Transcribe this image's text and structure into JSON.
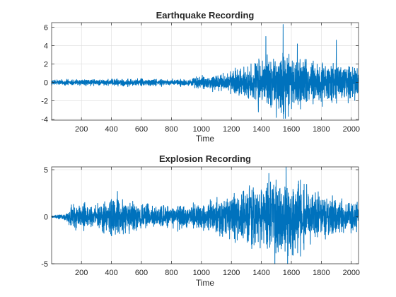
{
  "chart_data": [
    {
      "type": "line",
      "title": "Earthquake Recording",
      "xlabel": "Time",
      "ylabel": "",
      "xlim": [
        1,
        2048
      ],
      "ylim": [
        -4.1,
        6.5
      ],
      "xticks": [
        200,
        400,
        600,
        800,
        1000,
        1200,
        1400,
        1600,
        1800,
        2000
      ],
      "yticks": [
        -4,
        -2,
        0,
        2,
        4,
        6
      ],
      "grid": true,
      "color": "#0072BD",
      "signal": {
        "n": 2048,
        "envelope": [
          [
            1,
            0.25
          ],
          [
            900,
            0.3
          ],
          [
            1000,
            0.55
          ],
          [
            1200,
            1.0
          ],
          [
            1400,
            2.0
          ],
          [
            1550,
            2.8
          ],
          [
            1600,
            2.2
          ],
          [
            1800,
            1.8
          ],
          [
            2048,
            1.4
          ]
        ],
        "peaks": [
          [
            1545,
            6.3
          ],
          [
            1560,
            -3.9
          ],
          [
            1430,
            5.0
          ],
          [
            1500,
            -3.8
          ],
          [
            1640,
            4.2
          ],
          [
            1900,
            4.6
          ],
          [
            1380,
            -3.2
          ]
        ]
      }
    },
    {
      "type": "line",
      "title": "Explosion Recording",
      "xlabel": "Time",
      "ylabel": "",
      "xlim": [
        1,
        2048
      ],
      "ylim": [
        -5,
        5.3
      ],
      "xticks": [
        200,
        400,
        600,
        800,
        1000,
        1200,
        1400,
        1600,
        1800,
        2000
      ],
      "yticks": [
        -5,
        0,
        5
      ],
      "grid": true,
      "color": "#0072BD",
      "signal": {
        "n": 2048,
        "envelope": [
          [
            1,
            0.1
          ],
          [
            100,
            0.3
          ],
          [
            120,
            1.0
          ],
          [
            300,
            1.0
          ],
          [
            430,
            1.8
          ],
          [
            550,
            1.2
          ],
          [
            700,
            0.9
          ],
          [
            1000,
            1.0
          ],
          [
            1200,
            1.8
          ],
          [
            1350,
            2.5
          ],
          [
            1500,
            3.2
          ],
          [
            1600,
            3.0
          ],
          [
            1800,
            1.7
          ],
          [
            2048,
            1.2
          ]
        ],
        "peaks": [
          [
            1565,
            5.3
          ],
          [
            1575,
            -5.0
          ],
          [
            1490,
            -5.0
          ],
          [
            1450,
            4.6
          ],
          [
            440,
            2.7
          ],
          [
            1660,
            3.9
          ],
          [
            1320,
            3.3
          ]
        ]
      }
    }
  ]
}
